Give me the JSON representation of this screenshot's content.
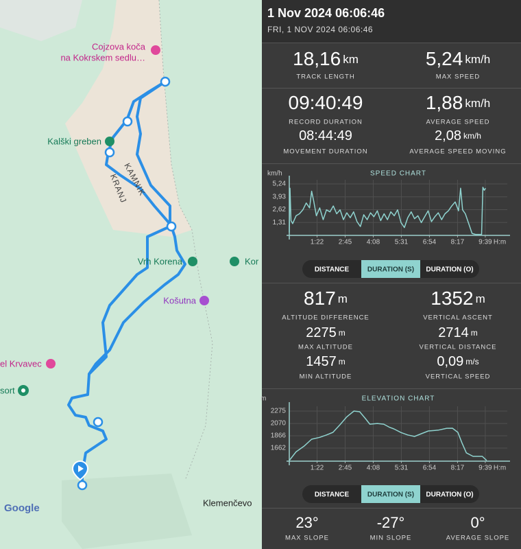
{
  "header": {
    "title": "1 Nov 2024 06:06:46",
    "subtitle": "FRI, 1 NOV 2024 06:06:46"
  },
  "map": {
    "labels": [
      "Cojzova koča",
      "na Kokrskem sedlu…",
      "Kalški greben",
      "KAMNIK",
      "KRANJ",
      "Vrh Korena",
      "Kor",
      "Košutna",
      "el Krvavec",
      "sort",
      "Klemenčevo"
    ],
    "attribution": "Google"
  },
  "stats_top": [
    {
      "value": "18,16",
      "unit": "km",
      "label": "TRACK LENGTH"
    },
    {
      "value": "5,24",
      "unit": "km/h",
      "label": "MAX SPEED"
    },
    {
      "value": "09:40:49",
      "label": "RECORD DURATION"
    },
    {
      "value": "1,88",
      "unit": "km/h",
      "label": "AVERAGE SPEED"
    },
    {
      "value": "08:44:49",
      "label": "MOVEMENT DURATION"
    },
    {
      "value": "2,08",
      "unit": "km/h",
      "label": "AVERAGE SPEED MOVING"
    }
  ],
  "stats_altitude": [
    {
      "value": "817",
      "unit": "m",
      "label": "ALTITUDE DIFFERENCE"
    },
    {
      "value": "1352",
      "unit": "m",
      "label": "VERTICAL ASCENT"
    },
    {
      "value": "2275",
      "unit": "m",
      "label": "MAX ALTITUDE"
    },
    {
      "value": "2714",
      "unit": "m",
      "label": "VERTICAL DISTANCE"
    },
    {
      "value": "1457",
      "unit": "m",
      "label": "MIN ALTITUDE"
    },
    {
      "value": "0,09",
      "unit": "m/s",
      "label": "VERTICAL SPEED"
    }
  ],
  "stats_slope": [
    {
      "value": "23°",
      "label": "MAX SLOPE"
    },
    {
      "value": "-27°",
      "label": "MIN SLOPE"
    },
    {
      "value": "0°",
      "label": "AVERAGE SLOPE"
    }
  ],
  "chart_data": [
    {
      "type": "line",
      "title": "SPEED CHART",
      "y_label": "km/h",
      "x_label": "H:m",
      "color": "#8fd3cf",
      "grid": true,
      "x": [
        0,
        2,
        5,
        10,
        20,
        30,
        40,
        50,
        60,
        66,
        72,
        80,
        90,
        100,
        110,
        120,
        130,
        140,
        150,
        160,
        170,
        180,
        190,
        200,
        210,
        220,
        230,
        240,
        250,
        260,
        270,
        280,
        290,
        300,
        310,
        320,
        330,
        340,
        350,
        360,
        370,
        380,
        390,
        400,
        410,
        420,
        430,
        440,
        450,
        460,
        470,
        480,
        490,
        500,
        506,
        512,
        520,
        530,
        540,
        550,
        560,
        568,
        572,
        576,
        580
      ],
      "values": [
        0.3,
        4.8,
        1.5,
        1.2,
        2.0,
        2.2,
        2.6,
        3.3,
        2.8,
        4.5,
        3.5,
        2.0,
        2.8,
        1.6,
        2.6,
        2.4,
        3.0,
        2.2,
        2.6,
        1.6,
        2.3,
        1.8,
        2.4,
        1.4,
        0.9,
        2.1,
        1.6,
        2.3,
        1.9,
        2.5,
        1.5,
        2.2,
        1.6,
        2.4,
        2.0,
        2.6,
        1.3,
        0.8,
        1.8,
        2.4,
        1.7,
        2.0,
        1.3,
        1.9,
        2.5,
        1.4,
        1.9,
        2.3,
        1.6,
        2.2,
        2.5,
        3.0,
        3.4,
        2.5,
        4.8,
        2.6,
        2.2,
        1.2,
        0.2,
        0.1,
        0.1,
        0.1,
        4.9,
        4.6,
        4.8
      ],
      "xlim": [
        0,
        644
      ],
      "ylim": [
        0,
        5.66
      ],
      "xticks": [
        {
          "value": 82,
          "label": "1:22"
        },
        {
          "value": 165,
          "label": "2:45"
        },
        {
          "value": 248,
          "label": "4:08"
        },
        {
          "value": 331,
          "label": "5:31"
        },
        {
          "value": 414,
          "label": "6:54"
        },
        {
          "value": 497,
          "label": "8:17"
        },
        {
          "value": 579,
          "label": "9:39"
        }
      ],
      "yticks": [
        {
          "value": 5.24,
          "label": "5,24"
        },
        {
          "value": 3.93,
          "label": "3,93"
        },
        {
          "value": 2.62,
          "label": "2,62"
        },
        {
          "value": 1.31,
          "label": "1,31"
        }
      ],
      "buttons": [
        "DISTANCE",
        "DURATION (S)",
        "DURATION (O)"
      ],
      "selected": 1
    },
    {
      "type": "line",
      "title": "ELEVATION CHART",
      "y_label": "m",
      "x_label": "H:m",
      "color": "#8fd3cf",
      "grid": true,
      "x": [
        0,
        20,
        45,
        66,
        90,
        110,
        129,
        150,
        170,
        191,
        208,
        225,
        238,
        260,
        279,
        295,
        309,
        330,
        350,
        370,
        390,
        411,
        440,
        465,
        482,
        498,
        510,
        523,
        543,
        570,
        583
      ],
      "values": [
        1457,
        1600,
        1700,
        1810,
        1840,
        1880,
        1923,
        2050,
        2180,
        2275,
        2264,
        2150,
        2059,
        2070,
        2059,
        2010,
        1980,
        1920,
        1880,
        1855,
        1900,
        1946,
        1960,
        1990,
        1991,
        1923,
        1750,
        1583,
        1526,
        1526,
        1458
      ],
      "xlim": [
        0,
        644
      ],
      "ylim": [
        1446,
        2355
      ],
      "xticks": [
        {
          "value": 82,
          "label": "1:22"
        },
        {
          "value": 165,
          "label": "2:45"
        },
        {
          "value": 248,
          "label": "4:08"
        },
        {
          "value": 331,
          "label": "5:31"
        },
        {
          "value": 414,
          "label": "6:54"
        },
        {
          "value": 497,
          "label": "8:17"
        },
        {
          "value": 579,
          "label": "9:39"
        }
      ],
      "yticks": [
        2275,
        2070,
        1866,
        1662
      ],
      "buttons": [
        "DISTANCE",
        "DURATION (S)",
        "DURATION (O)"
      ],
      "selected": 1
    }
  ]
}
